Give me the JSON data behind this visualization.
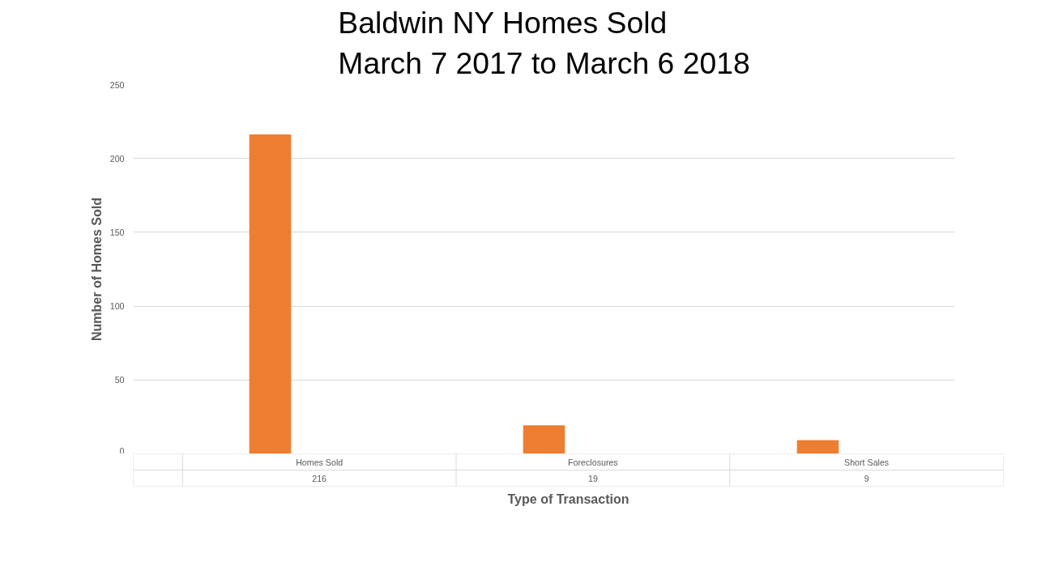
{
  "chart_data": {
    "type": "bar",
    "title": "Baldwin NY Homes Sold\nMarch 7 2017 to March 6 2018",
    "xlabel": "Type of Transaction",
    "ylabel": "Number of Homes Sold",
    "categories": [
      "Homes Sold",
      "Foreclosures",
      "Short Sales"
    ],
    "values": [
      216,
      19,
      9
    ],
    "color": "#ed7d31",
    "ylim": [
      0,
      250
    ],
    "yticks": [
      0,
      50,
      100,
      150,
      200,
      250
    ],
    "grid": "y",
    "data_labels": true
  }
}
